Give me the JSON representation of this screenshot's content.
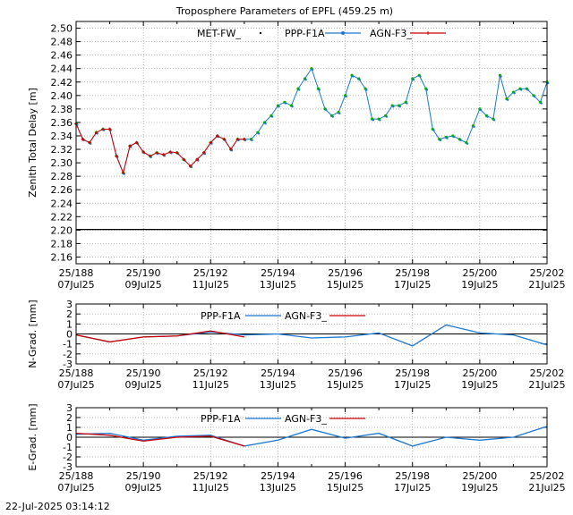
{
  "colors": {
    "met": "#000000",
    "ppp_dots": "#00b000",
    "ppp_line": "#1a77d2",
    "agn": "#cc0000",
    "grid": "#9a9a9a",
    "zero": "#000000"
  },
  "timestamp": "22-Jul-2025 03:14:12",
  "x_ticks": [
    {
      "doy": "25/188",
      "date": "07Jul25"
    },
    {
      "doy": "25/190",
      "date": "09Jul25"
    },
    {
      "doy": "25/192",
      "date": "11Jul25"
    },
    {
      "doy": "25/194",
      "date": "13Jul25"
    },
    {
      "doy": "25/196",
      "date": "15Jul25"
    },
    {
      "doy": "25/198",
      "date": "17Jul25"
    },
    {
      "doy": "25/200",
      "date": "19Jul25"
    },
    {
      "doy": "25/202",
      "date": "21Jul25"
    }
  ],
  "chart_data": [
    {
      "type": "line",
      "title": "Troposphere Parameters of EPFL (459.25 m)",
      "ylabel": "Zenith Total Delay [m]",
      "xlim": [
        188,
        202
      ],
      "ylim": [
        2.15,
        2.51
      ],
      "y_ticks": [
        "2.16",
        "2.18",
        "2.20",
        "2.22",
        "2.24",
        "2.26",
        "2.28",
        "2.30",
        "2.32",
        "2.34",
        "2.36",
        "2.38",
        "2.40",
        "2.42",
        "2.44",
        "2.46",
        "2.48",
        "2.50"
      ],
      "grid": true,
      "legend_position": "top-center",
      "series": [
        {
          "name": "MET-FW_",
          "style": "dots",
          "color": "#000000",
          "x": [
            188,
            202
          ],
          "y": [
            2.201,
            2.201
          ]
        },
        {
          "name": "PPP-F1A",
          "style": "dots+line",
          "color": "#1a77d2",
          "x": [
            188.0,
            188.2,
            188.4,
            188.6,
            188.8,
            189.0,
            189.2,
            189.4,
            189.6,
            189.8,
            190.0,
            190.2,
            190.4,
            190.6,
            190.8,
            191.0,
            191.2,
            191.4,
            191.6,
            191.8,
            192.0,
            192.2,
            192.4,
            192.6,
            192.8,
            193.0,
            193.2,
            193.4,
            193.6,
            193.8,
            194.0,
            194.2,
            194.4,
            194.6,
            194.8,
            195.0,
            195.2,
            195.4,
            195.6,
            195.8,
            196.0,
            196.2,
            196.4,
            196.6,
            196.8,
            197.0,
            197.2,
            197.4,
            197.6,
            197.8,
            198.0,
            198.2,
            198.4,
            198.6,
            198.8,
            199.0,
            199.2,
            199.4,
            199.6,
            199.8,
            200.0,
            200.2,
            200.4,
            200.6,
            200.8,
            201.0,
            201.2,
            201.4,
            201.6,
            201.8,
            202.0
          ],
          "y": [
            2.358,
            2.335,
            2.33,
            2.345,
            2.35,
            2.35,
            2.31,
            2.285,
            2.325,
            2.33,
            2.316,
            2.31,
            2.315,
            2.312,
            2.316,
            2.315,
            2.305,
            2.295,
            2.305,
            2.315,
            2.33,
            2.34,
            2.335,
            2.32,
            2.335,
            2.335,
            2.335,
            2.345,
            2.36,
            2.37,
            2.385,
            2.39,
            2.385,
            2.41,
            2.425,
            2.44,
            2.41,
            2.38,
            2.37,
            2.375,
            2.4,
            2.43,
            2.425,
            2.41,
            2.365,
            2.365,
            2.37,
            2.385,
            2.385,
            2.39,
            2.425,
            2.43,
            2.41,
            2.35,
            2.335,
            2.338,
            2.34,
            2.335,
            2.33,
            2.355,
            2.38,
            2.37,
            2.365,
            2.43,
            2.395,
            2.405,
            2.41,
            2.41,
            2.4,
            2.39,
            2.42
          ]
        },
        {
          "name": "AGN-F3_",
          "style": "line+cross",
          "color": "#cc0000",
          "x": [
            188.0,
            188.2,
            188.4,
            188.6,
            188.8,
            189.0,
            189.2,
            189.4,
            189.6,
            189.8,
            190.0,
            190.2,
            190.4,
            190.6,
            190.8,
            191.0,
            191.2,
            191.4,
            191.6,
            191.8,
            192.0,
            192.2,
            192.4,
            192.6,
            192.8,
            193.0
          ],
          "y": [
            2.358,
            2.335,
            2.33,
            2.345,
            2.35,
            2.35,
            2.31,
            2.285,
            2.325,
            2.33,
            2.316,
            2.31,
            2.315,
            2.312,
            2.316,
            2.315,
            2.305,
            2.295,
            2.305,
            2.315,
            2.33,
            2.34,
            2.335,
            2.32,
            2.335,
            2.335
          ]
        }
      ]
    },
    {
      "type": "line",
      "title": "",
      "ylabel": "N-Grad. [mm]",
      "xlim": [
        188,
        202
      ],
      "ylim": [
        -3,
        3
      ],
      "y_ticks": [
        "-3",
        "-2",
        "-1",
        "0",
        "1",
        "2",
        "3"
      ],
      "grid": true,
      "legend_position": "top-center",
      "series": [
        {
          "name": "PPP-F1A",
          "style": "line",
          "color": "#1a77d2",
          "x": [
            188,
            189,
            190,
            191,
            192,
            193,
            194,
            195,
            196,
            197,
            198,
            199,
            200,
            201,
            202
          ],
          "y": [
            -0.1,
            -0.8,
            -0.3,
            -0.2,
            0.2,
            -0.1,
            0.0,
            -0.4,
            -0.3,
            0.1,
            -1.2,
            0.9,
            0.1,
            -0.1,
            -1.1
          ]
        },
        {
          "name": "AGN-F3_",
          "style": "line",
          "color": "#cc0000",
          "x": [
            188,
            189,
            190,
            191,
            192,
            193
          ],
          "y": [
            -0.1,
            -0.8,
            -0.3,
            -0.2,
            0.3,
            -0.3
          ]
        }
      ]
    },
    {
      "type": "line",
      "title": "",
      "ylabel": "E-Grad. [mm]",
      "xlim": [
        188,
        202
      ],
      "ylim": [
        -3,
        3
      ],
      "y_ticks": [
        "-3",
        "-2",
        "-1",
        "0",
        "1",
        "2",
        "3"
      ],
      "grid": true,
      "legend_position": "top-center",
      "series": [
        {
          "name": "PPP-F1A",
          "style": "line",
          "color": "#1a77d2",
          "x": [
            188,
            189,
            190,
            191,
            192,
            193,
            194,
            195,
            196,
            197,
            198,
            199,
            200,
            201,
            202
          ],
          "y": [
            0.3,
            0.4,
            -0.3,
            0.1,
            0.2,
            -0.9,
            -0.3,
            0.8,
            -0.1,
            0.4,
            -0.9,
            0.0,
            -0.3,
            0.0,
            1.1
          ]
        },
        {
          "name": "AGN-F3_",
          "style": "line",
          "color": "#cc0000",
          "x": [
            188,
            189,
            190,
            191,
            192,
            193
          ],
          "y": [
            0.4,
            0.2,
            -0.4,
            0.0,
            0.1,
            -0.9
          ]
        }
      ]
    }
  ]
}
